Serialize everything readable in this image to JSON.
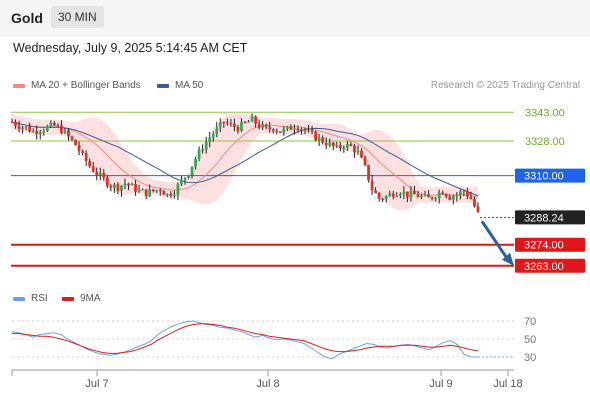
{
  "header": {
    "instrument": "Gold",
    "timeframe": "30 MIN"
  },
  "datetime": "Wednesday, July 9, 2025 5:14:45 AM CET",
  "legend": {
    "ma20": "MA 20 + Bollinger Bands",
    "ma50": "MA 50"
  },
  "research": "Research © 2025 Trading Central",
  "rsi_legend": {
    "rsi": "RSI",
    "ma9": "9MA"
  },
  "colors": {
    "ma20": "#f28b82",
    "ma50": "#3d5a99",
    "resistance": "#8bc34a",
    "pivot": "#1e63e9",
    "support": "#e0161b",
    "arrow": "#2d5fa0",
    "band": "#ffd6d6",
    "rsi": "#6fa0e8",
    "rsi_ma": "#d32020"
  },
  "chart_data": {
    "type": "candlestick",
    "title": "Gold 30 MIN",
    "x_ticks": [
      "Jul 7",
      "Jul 8",
      "Jul 9",
      "Jul 18"
    ],
    "y_range": [
      3253,
      3352
    ],
    "levels": [
      {
        "label": "3343.00",
        "value": 3343.0,
        "kind": "resistance"
      },
      {
        "label": "3328.00",
        "value": 3328.0,
        "kind": "resistance"
      },
      {
        "label": "3310.00",
        "value": 3310.0,
        "kind": "pivot"
      },
      {
        "label": "3288.24",
        "value": 3288.24,
        "kind": "last"
      },
      {
        "label": "3274.00",
        "value": 3274.0,
        "kind": "support"
      },
      {
        "label": "3263.00",
        "value": 3263.0,
        "kind": "support"
      }
    ],
    "close_path": [
      3338,
      3336,
      3335,
      3333,
      3334,
      3335,
      3336,
      3334,
      3330,
      3326,
      3320,
      3315,
      3311,
      3308,
      3305,
      3304,
      3306,
      3304,
      3302,
      3301,
      3302,
      3303,
      3300,
      3302,
      3307,
      3312,
      3319,
      3325,
      3330,
      3334,
      3338,
      3336,
      3335,
      3337,
      3339,
      3336,
      3334,
      3335,
      3333,
      3334,
      3336,
      3335,
      3332,
      3330,
      3328,
      3326,
      3324,
      3326,
      3325,
      3322,
      3314,
      3303,
      3298,
      3299,
      3301,
      3302,
      3300,
      3300,
      3299,
      3298,
      3300,
      3302,
      3299,
      3300,
      3302,
      3298,
      3290
    ],
    "price_range": [
      3291,
      3343
    ],
    "rsi": {
      "ticks": [
        70,
        50,
        30
      ],
      "ylim": [
        20,
        80
      ],
      "rsi_values": [
        58,
        57,
        55,
        52,
        55,
        56,
        57,
        55,
        50,
        46,
        42,
        38,
        35,
        33,
        32,
        33,
        35,
        38,
        41,
        44,
        48,
        55,
        60,
        64,
        67,
        69,
        70,
        68,
        66,
        65,
        63,
        62,
        60,
        58,
        55,
        52,
        54,
        51,
        49,
        50,
        49,
        47,
        45,
        40,
        35,
        30,
        28,
        33,
        36,
        39,
        42,
        45,
        44,
        41,
        40,
        42,
        43,
        44,
        42,
        40,
        38,
        42,
        46,
        48,
        44,
        33,
        30,
        30
      ],
      "ma_values": [
        56,
        56,
        55,
        54,
        53,
        53,
        52,
        50,
        48,
        45,
        42,
        39,
        37,
        35,
        34,
        34,
        35,
        36,
        38,
        41,
        44,
        49,
        53,
        57,
        61,
        64,
        66,
        67,
        67,
        66,
        65,
        63,
        62,
        60,
        58,
        56,
        55,
        53,
        52,
        51,
        50,
        49,
        48,
        45,
        42,
        39,
        37,
        36,
        36,
        37,
        38,
        40,
        41,
        42,
        42,
        42,
        43,
        43,
        43,
        42,
        41,
        41,
        42,
        43,
        42,
        40,
        38,
        37
      ]
    }
  }
}
